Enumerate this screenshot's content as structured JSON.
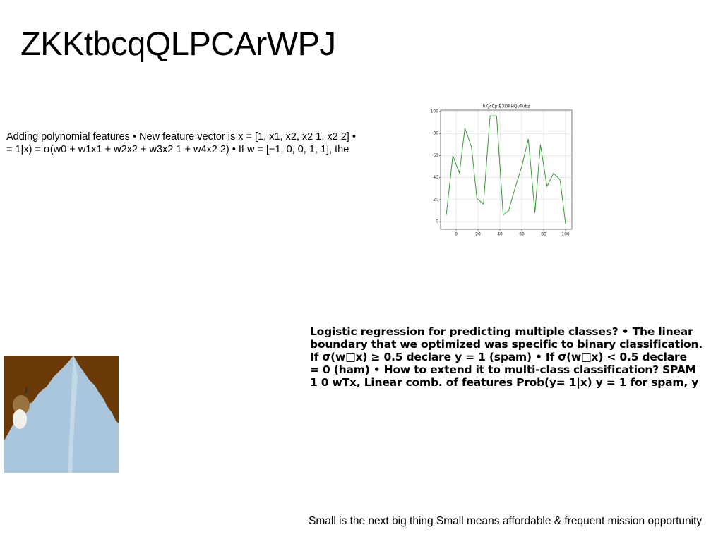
{
  "title": "ZKKtbcqQLPCArWPJ",
  "paragraph_1": [
    "Adding polynomial features • New feature vector is x = [1, x1, x2, x2 1, x2 2] •",
    "= 1|x) = σ(w0 + w1x1 + w2x2 + w3x2 1 + w4x2 2) • If w = [−1, 0, 0, 1, 1], the"
  ],
  "paragraph_2": [
    "Logistic regression for predicting multiple classes? • The linear",
    "boundary that we optimized was specific to binary classification.",
    "If σ(w□x) ≥ 0.5 declare y = 1 (spam) • If σ(w□x) < 0.5 declare",
    "= 0 (ham) • How to extend it to multi-class classification? SPAM",
    "1 0 wTx, Linear comb. of features Prob(y= 1|x) y = 1 for spam, y"
  ],
  "paragraph_3": "Small is the next big thing Small means affordable & frequent mission opportunity",
  "chart_data": {
    "type": "line",
    "title": "hKJcCpfBXORHQvTvbz",
    "x": [
      -9,
      -3,
      3,
      8,
      14,
      19,
      25,
      31,
      37,
      43,
      48,
      54,
      60,
      66,
      72,
      77,
      83,
      89,
      95,
      100
    ],
    "series": [
      {
        "name": "series",
        "color": "#3a9a3a",
        "values": [
          6,
          60,
          44,
          85,
          68,
          21,
          16,
          96,
          96,
          6,
          10,
          31,
          50,
          75,
          8,
          70,
          32,
          44,
          38,
          -2
        ]
      }
    ],
    "xlim": [
      -14.2,
      105.8
    ],
    "ylim": [
      -7,
      101.3
    ],
    "xticks": [
      0,
      20,
      40,
      60,
      80,
      100
    ],
    "yticks": [
      0,
      20,
      40,
      60,
      80,
      100
    ],
    "grid": true
  }
}
